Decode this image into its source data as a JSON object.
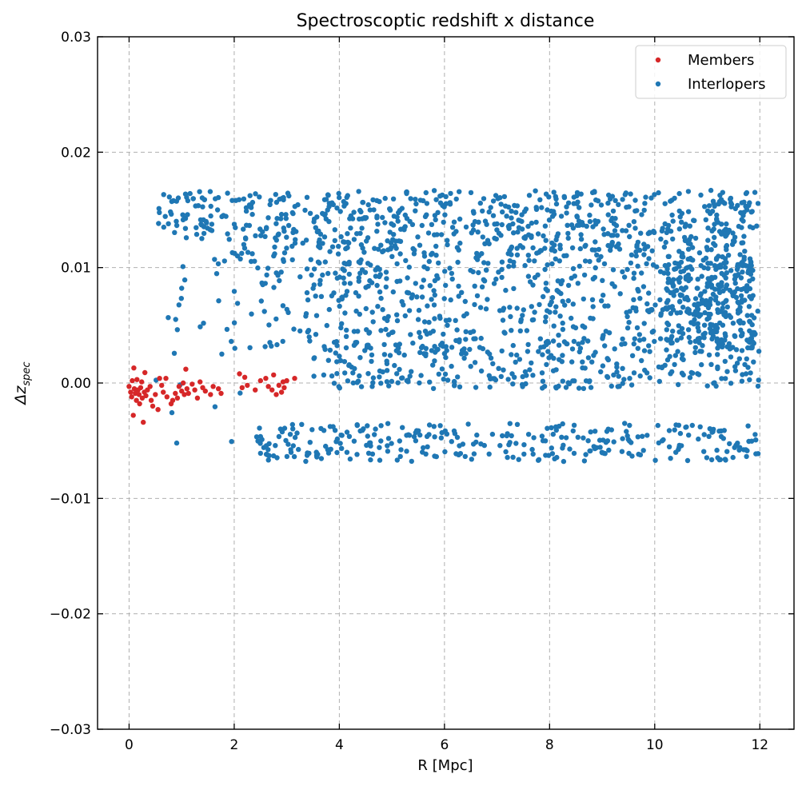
{
  "chart_data": {
    "type": "scatter",
    "title": "Spectroscoptic redshift x distance",
    "xlabel": "R [Mpc]",
    "ylabel_main": "Δz",
    "ylabel_sub": "spec",
    "xlim": [
      -0.6,
      12.65
    ],
    "ylim": [
      -0.03,
      0.03
    ],
    "xticks": [
      0,
      2,
      4,
      6,
      8,
      10,
      12
    ],
    "xtick_labels": [
      "0",
      "2",
      "4",
      "6",
      "8",
      "10",
      "12"
    ],
    "yticks": [
      -0.03,
      -0.02,
      -0.01,
      0.0,
      0.01,
      0.02,
      0.03
    ],
    "ytick_labels": [
      "−0.03",
      "−0.02",
      "−0.01",
      "0.00",
      "0.01",
      "0.02",
      "0.03"
    ],
    "grid": true,
    "legend_position": "top-right",
    "series": [
      {
        "name": "Members",
        "color": "#d62728",
        "points": [
          [
            0.0,
            -0.0003
          ],
          [
            0.03,
            -0.0008
          ],
          [
            0.05,
            -0.0012
          ],
          [
            0.06,
            0.0002
          ],
          [
            0.08,
            -0.0028
          ],
          [
            0.09,
            0.0013
          ],
          [
            0.1,
            -0.0005
          ],
          [
            0.12,
            -0.0009
          ],
          [
            0.14,
            -0.0015
          ],
          [
            0.15,
            0.0003
          ],
          [
            0.17,
            -0.0006
          ],
          [
            0.19,
            -0.001
          ],
          [
            0.2,
            -0.0018
          ],
          [
            0.22,
            -0.0004
          ],
          [
            0.24,
            0.0001
          ],
          [
            0.25,
            -0.0013
          ],
          [
            0.27,
            -0.0034
          ],
          [
            0.29,
            -0.0008
          ],
          [
            0.3,
            0.0009
          ],
          [
            0.32,
            -0.0011
          ],
          [
            0.35,
            -0.0006
          ],
          [
            0.4,
            -0.0003
          ],
          [
            0.42,
            -0.0015
          ],
          [
            0.45,
            -0.002
          ],
          [
            0.5,
            -0.001
          ],
          [
            0.55,
            -0.0023
          ],
          [
            0.58,
            0.0004
          ],
          [
            0.62,
            -0.0002
          ],
          [
            0.65,
            -0.0008
          ],
          [
            0.7,
            0.0004
          ],
          [
            0.72,
            -0.0012
          ],
          [
            0.8,
            -0.0018
          ],
          [
            0.83,
            -0.0015
          ],
          [
            0.88,
            -0.0009
          ],
          [
            0.92,
            -0.0013
          ],
          [
            0.95,
            -0.0003
          ],
          [
            1.0,
            -0.0007
          ],
          [
            1.03,
            0.0
          ],
          [
            1.05,
            -0.001
          ],
          [
            1.08,
            0.0012
          ],
          [
            1.1,
            -0.0005
          ],
          [
            1.13,
            -0.0009
          ],
          [
            1.2,
            -0.0001
          ],
          [
            1.25,
            -0.0006
          ],
          [
            1.3,
            -0.0013
          ],
          [
            1.35,
            0.0001
          ],
          [
            1.4,
            -0.0004
          ],
          [
            1.45,
            -0.0007
          ],
          [
            1.55,
            -0.001
          ],
          [
            1.6,
            -0.0003
          ],
          [
            1.7,
            -0.0005
          ],
          [
            1.75,
            -0.0009
          ],
          [
            2.1,
            0.0008
          ],
          [
            2.15,
            -0.0004
          ],
          [
            2.2,
            0.0005
          ],
          [
            2.25,
            -0.0002
          ],
          [
            2.4,
            -0.0006
          ],
          [
            2.5,
            0.0002
          ],
          [
            2.6,
            0.0004
          ],
          [
            2.65,
            -0.0003
          ],
          [
            2.72,
            -0.0006
          ],
          [
            2.75,
            0.0007
          ],
          [
            2.8,
            -0.001
          ],
          [
            2.85,
            -0.0002
          ],
          [
            2.9,
            -0.0008
          ],
          [
            2.93,
            0.0001
          ],
          [
            2.95,
            -0.0004
          ],
          [
            3.0,
            0.0002
          ],
          [
            3.15,
            0.0004
          ]
        ]
      },
      {
        "name": "Interlopers",
        "color": "#1f77b4",
        "points": []
      }
    ]
  }
}
